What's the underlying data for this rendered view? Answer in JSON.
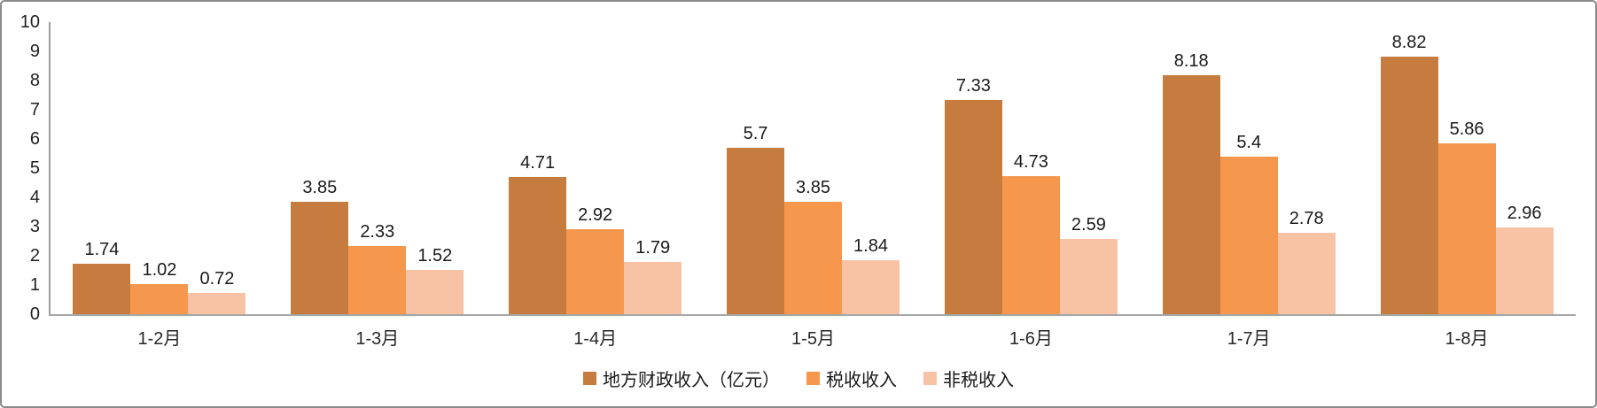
{
  "chart_data": {
    "type": "bar",
    "title": "",
    "categories": [
      "1-2月",
      "1-3月",
      "1-4月",
      "1-5月",
      "1-6月",
      "1-7月",
      "1-8月"
    ],
    "series": [
      {
        "name": "地方财政收入（亿元）",
        "color": "#c67c3e",
        "values": [
          1.74,
          3.85,
          4.71,
          5.7,
          7.33,
          8.18,
          8.82
        ]
      },
      {
        "name": "税收收入",
        "color": "#f5984d",
        "values": [
          1.02,
          2.33,
          2.92,
          3.85,
          4.73,
          5.4,
          5.86
        ]
      },
      {
        "name": "非税收入",
        "color": "#f8c3a4",
        "values": [
          0.72,
          1.52,
          1.79,
          1.84,
          2.59,
          2.78,
          2.96
        ]
      }
    ],
    "xlabel": "",
    "ylabel": "",
    "ylim": [
      0,
      10
    ],
    "yticks": [
      0,
      1,
      2,
      3,
      4,
      5,
      6,
      7,
      8,
      9,
      10
    ],
    "grid": false,
    "legend_position": "bottom",
    "data_labels": true
  },
  "colors": {
    "frame_border": "#8b8b8b",
    "axis_line": "#9d9d9d",
    "text": "#1a1a1a"
  }
}
